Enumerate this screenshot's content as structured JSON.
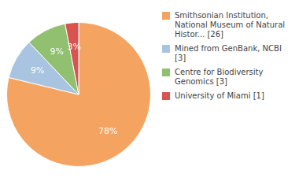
{
  "chart_data": {
    "type": "pie",
    "categories": [
      "Smithsonian Institution,\nNational Museum of Natural\nHistor... [26]",
      "Mined from GenBank, NCBI [3]",
      "Centre for Biodiversity\nGenomics [3]",
      "University of Miami [1]"
    ],
    "values": [
      78,
      9,
      9,
      3
    ],
    "value_labels": [
      "78%",
      "9%",
      "9%",
      "3%"
    ],
    "colors": [
      "#f4a460",
      "#a8c4e0",
      "#90c070",
      "#d9534f"
    ],
    "data_labels": true,
    "legend": "right"
  }
}
